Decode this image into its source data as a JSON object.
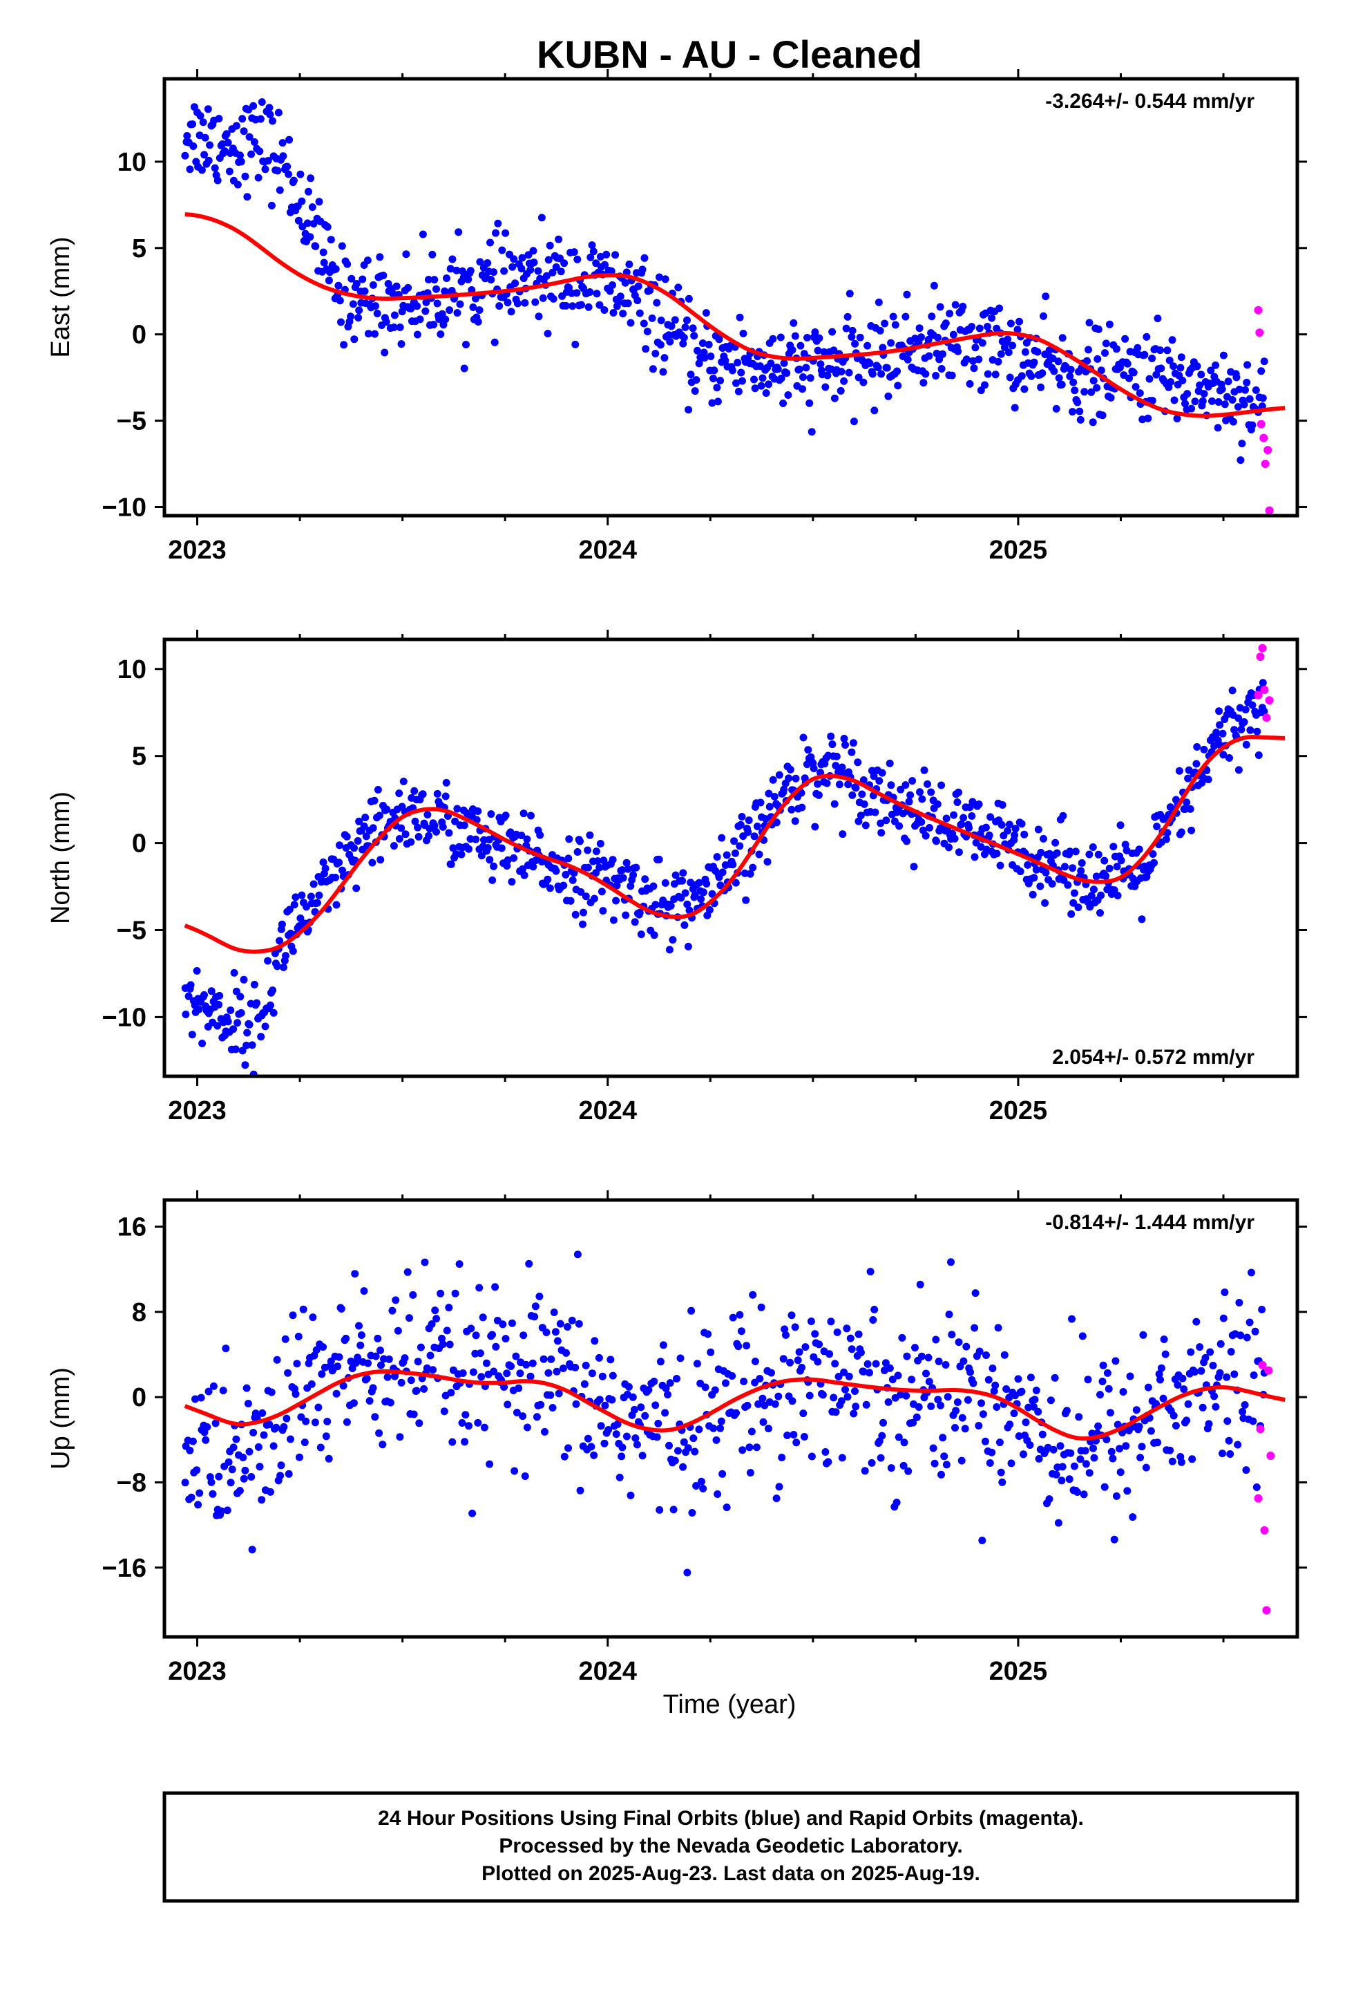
{
  "title": "KUBN  - AU - Cleaned",
  "x_axis_label": "Time (year)",
  "colors": {
    "final": "#0000ff",
    "rapid": "#ff00ff",
    "fit": "#ff0000",
    "frame": "#000000"
  },
  "chart_data": [
    {
      "type": "scatter",
      "ylabel": "East (mm)",
      "rate": "-3.264+/- 0.544 mm/yr",
      "rate_position": "top-right",
      "xlim": [
        2022.92,
        2025.68
      ],
      "ylim": [
        -10.5,
        14.8
      ],
      "xticks": [
        2023,
        2024,
        2025
      ],
      "xtick_labels": [
        "2023",
        "2024",
        "2025"
      ],
      "yticks": [
        -10,
        -5,
        0,
        5,
        10
      ],
      "ytick_labels": [
        "−10",
        "−5",
        "0",
        "5",
        "10"
      ],
      "fit_curve": {
        "name": "",
        "x": [
          2022.97,
          2023.05,
          2023.15,
          2023.25,
          2023.4,
          2023.6,
          2023.8,
          2024.0,
          2024.1,
          2024.2,
          2024.3,
          2024.4,
          2024.55,
          2024.7,
          2024.85,
          2025.0,
          2025.1,
          2025.2,
          2025.3,
          2025.4,
          2025.5,
          2025.65
        ],
        "y": [
          7.0,
          6.8,
          5.2,
          3.2,
          2.0,
          2.2,
          2.6,
          3.6,
          3.2,
          1.4,
          -0.5,
          -1.5,
          -1.3,
          -1.0,
          -0.3,
          0.3,
          -0.8,
          -2.4,
          -4.0,
          -4.8,
          -4.7,
          -4.2
        ]
      },
      "final_orbits": {
        "trend": {
          "x": [
            2022.97,
            2023.04,
            2023.08,
            2023.12,
            2023.2,
            2023.35,
            2023.5,
            2023.7,
            2023.9,
            2024.05,
            2024.15,
            2024.22,
            2024.3,
            2024.45,
            2024.6,
            2024.8,
            2024.95,
            2025.05,
            2025.15,
            2025.3,
            2025.45,
            2025.6
          ],
          "y": [
            11.7,
            11.3,
            11.0,
            11.1,
            10.4,
            2.3,
            1.8,
            2.8,
            3.3,
            2.4,
            0.3,
            -1.7,
            -1.4,
            -2.1,
            -1.6,
            -0.4,
            -0.6,
            -1.8,
            -2.4,
            -2.2,
            -2.9,
            -4.0
          ]
        },
        "break": 2023.18,
        "scatter_mm": 1.3,
        "count": 900
      },
      "rapid_orbits": {
        "x": [
          2025.585,
          2025.588,
          2025.592,
          2025.598,
          2025.602,
          2025.608,
          2025.612
        ],
        "y": [
          1.4,
          0.1,
          -5.2,
          -6.0,
          -7.5,
          -6.7,
          -10.2
        ]
      }
    },
    {
      "type": "scatter",
      "ylabel": "North (mm)",
      "rate": "2.054+/- 0.572 mm/yr",
      "rate_position": "bottom-right",
      "xlim": [
        2022.92,
        2025.68
      ],
      "ylim": [
        -13.4,
        11.7
      ],
      "xticks": [
        2023,
        2024,
        2025
      ],
      "xtick_labels": [
        "2023",
        "2024",
        "2025"
      ],
      "yticks": [
        -10,
        -5,
        0,
        5,
        10
      ],
      "ytick_labels": [
        "−10",
        "−5",
        "0",
        "5",
        "10"
      ],
      "fit_curve": {
        "name": "",
        "x": [
          2022.97,
          2023.05,
          2023.15,
          2023.25,
          2023.35,
          2023.45,
          2023.55,
          2023.65,
          2023.8,
          2023.95,
          2024.05,
          2024.15,
          2024.25,
          2024.35,
          2024.45,
          2024.55,
          2024.7,
          2024.85,
          2025.0,
          2025.1,
          2025.2,
          2025.3,
          2025.4,
          2025.5,
          2025.65
        ],
        "y": [
          -4.4,
          -5.8,
          -6.6,
          -5.5,
          -2.6,
          0.8,
          2.4,
          1.5,
          -0.5,
          -1.6,
          -3.3,
          -4.6,
          -3.9,
          -0.6,
          3.3,
          4.3,
          2.3,
          0.8,
          -0.6,
          -1.7,
          -2.6,
          -1.6,
          2.7,
          6.2,
          6.0
        ]
      },
      "final_orbits": {
        "trend": {
          "x": [
            2022.97,
            2023.05,
            2023.15,
            2023.22,
            2023.3,
            2023.4,
            2023.5,
            2023.6,
            2023.75,
            2023.9,
            2024.05,
            2024.15,
            2024.25,
            2024.35,
            2024.45,
            2024.55,
            2024.7,
            2024.85,
            2025.0,
            2025.1,
            2025.2,
            2025.3,
            2025.4,
            2025.5,
            2025.6
          ],
          "y": [
            -8.8,
            -9.8,
            -10.5,
            -5.0,
            -3.3,
            -0.2,
            1.8,
            1.2,
            -0.5,
            -1.5,
            -2.6,
            -3.6,
            -3.0,
            0.0,
            3.5,
            4.5,
            2.3,
            0.9,
            -0.3,
            -1.2,
            -2.2,
            -1.7,
            2.0,
            6.3,
            7.8
          ]
        },
        "scatter_mm": 1.1,
        "count": 900
      },
      "rapid_orbits": {
        "x": [
          2025.585,
          2025.59,
          2025.595,
          2025.6,
          2025.605,
          2025.612
        ],
        "y": [
          8.5,
          10.7,
          11.2,
          8.8,
          7.2,
          8.2
        ]
      }
    },
    {
      "type": "scatter",
      "ylabel": "Up (mm)",
      "rate": "-0.814+/- 1.444 mm/yr",
      "rate_position": "top-right",
      "xlim": [
        2022.92,
        2025.68
      ],
      "ylim": [
        -22.5,
        18.5
      ],
      "xticks": [
        2023,
        2024,
        2025
      ],
      "xtick_labels": [
        "2023",
        "2024",
        "2025"
      ],
      "yticks": [
        -16,
        -8,
        0,
        8,
        16
      ],
      "ytick_labels": [
        "−16",
        "−8",
        "0",
        "8",
        "16"
      ],
      "fit_curve": {
        "name": "",
        "x": [
          2022.97,
          2023.05,
          2023.15,
          2023.25,
          2023.4,
          2023.55,
          2023.7,
          2023.85,
          2024.0,
          2024.1,
          2024.2,
          2024.3,
          2024.45,
          2024.6,
          2024.75,
          2024.9,
          2025.0,
          2025.1,
          2025.2,
          2025.3,
          2025.45,
          2025.55,
          2025.65
        ],
        "y": [
          -0.3,
          -2.5,
          -2.8,
          -0.6,
          2.6,
          2.2,
          1.1,
          1.8,
          -1.6,
          -3.5,
          -2.9,
          -0.2,
          2.0,
          1.1,
          0.5,
          0.8,
          -0.8,
          -3.8,
          -4.2,
          -1.8,
          1.2,
          0.8,
          -0.5
        ]
      },
      "final_orbits": {
        "trend": {
          "x": [
            2022.97,
            2023.05,
            2023.15,
            2023.25,
            2023.4,
            2023.55,
            2023.7,
            2023.85,
            2024.0,
            2024.1,
            2024.2,
            2024.3,
            2024.45,
            2024.6,
            2024.75,
            2024.9,
            2025.0,
            2025.1,
            2025.2,
            2025.3,
            2025.45,
            2025.55,
            2025.6
          ],
          "y": [
            -4.5,
            -6.0,
            -5.5,
            0.5,
            3.0,
            2.5,
            1.5,
            1.5,
            -1.0,
            -3.0,
            -2.5,
            0.0,
            2.0,
            1.5,
            0.5,
            1.0,
            -1.0,
            -4.0,
            -4.5,
            -2.0,
            1.0,
            1.0,
            0.0
          ]
        },
        "scatter_mm": 4.2,
        "count": 820
      },
      "rapid_orbits": {
        "x": [
          2025.585,
          2025.59,
          2025.595,
          2025.6,
          2025.605,
          2025.61,
          2025.615
        ],
        "y": [
          -9.5,
          -3.0,
          3.0,
          -12.5,
          -20.0,
          2.5,
          -5.5
        ]
      }
    }
  ],
  "caption": {
    "line1": "24 Hour Positions Using Final Orbits (blue) and Rapid Orbits (magenta).",
    "line2": "Processed by the Nevada Geodetic Laboratory.",
    "line3": "Plotted on 2025-Aug-23. Last data on 2025-Aug-19."
  }
}
